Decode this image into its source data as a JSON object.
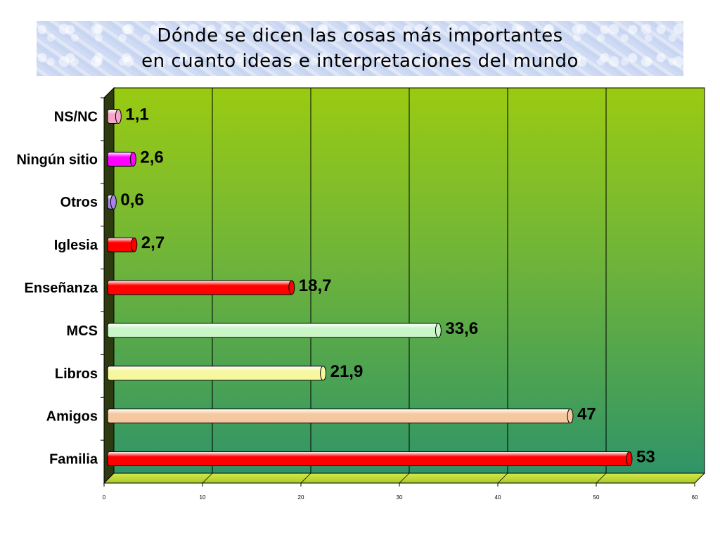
{
  "title": {
    "line1": "Dónde se dicen las cosas más importantes",
    "line2": "en cuanto ideas e interpretaciones del mundo"
  },
  "chart_data": {
    "type": "bar",
    "orientation": "horizontal",
    "categories": [
      "NS/NC",
      "Ningún sitio",
      "Otros",
      "Iglesia",
      "Enseñanza",
      "MCS",
      "Libros",
      "Amigos",
      "Familia"
    ],
    "values": [
      1.1,
      2.6,
      0.6,
      2.7,
      18.7,
      33.6,
      21.9,
      47,
      53
    ],
    "value_labels": [
      "1,1",
      "2,6",
      "0,6",
      "2,7",
      "18,7",
      "33,6",
      "21,9",
      "47",
      "53"
    ],
    "bar_colors": [
      "#f4a6c8",
      "#ff00ff",
      "#a884e8",
      "#ff0000",
      "#ff0000",
      "#c9f5c9",
      "#f7f7a0",
      "#f6c8a0",
      "#ff0000"
    ],
    "xlim": [
      0,
      60
    ],
    "x_ticks": [
      "0",
      "10",
      "20",
      "30",
      "40",
      "50",
      "60"
    ],
    "grid": true,
    "background": "green-gradient"
  }
}
